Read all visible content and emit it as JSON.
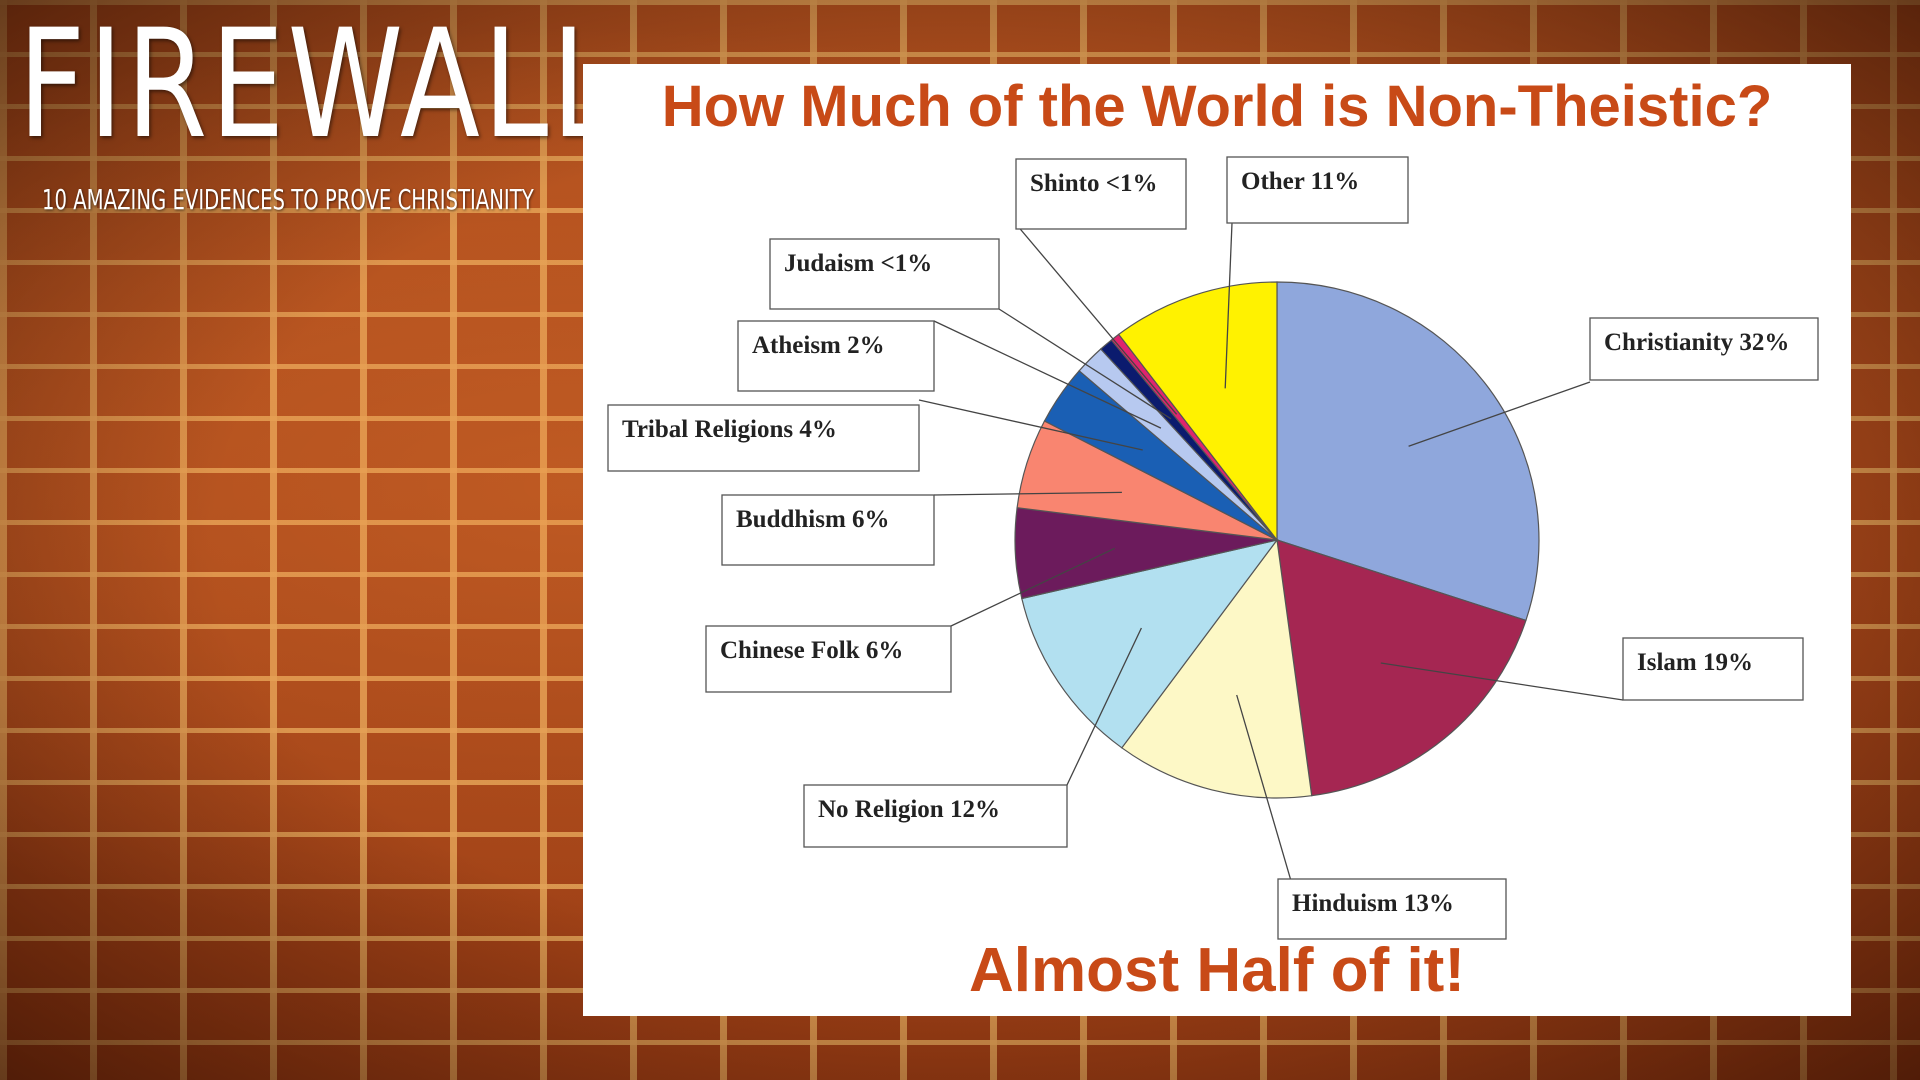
{
  "header": {
    "brand": "FIREWALL",
    "tagline": "10 AMAZING EVIDENCES TO PROVE CHRISTIANITY"
  },
  "chart_data": {
    "type": "pie",
    "title": "How Much of the World is Non-Theistic?",
    "footer": "Almost Half of it!",
    "slices": [
      {
        "label": "Christianity 32%",
        "name": "Christianity",
        "value": 32,
        "color": "#8fa7dc"
      },
      {
        "label": "Islam 19%",
        "name": "Islam",
        "value": 19,
        "color": "#a52652"
      },
      {
        "label": "Hinduism 13%",
        "name": "Hinduism",
        "value": 13,
        "color": "#fdf8c6"
      },
      {
        "label": "No Religion 12%",
        "name": "No Religion",
        "value": 12,
        "color": "#b2e0f0"
      },
      {
        "label": "Chinese Folk 6%",
        "name": "Chinese Folk",
        "value": 6,
        "color": "#6c1b5c"
      },
      {
        "label": "Buddhism 6%",
        "name": "Buddhism",
        "value": 6,
        "color": "#f98570"
      },
      {
        "label": "Tribal Religions 4%",
        "name": "Tribal Religions",
        "value": 4,
        "color": "#1a5fb4"
      },
      {
        "label": "Atheism 2%",
        "name": "Atheism",
        "value": 2,
        "color": "#b7c9f0"
      },
      {
        "label": "Judaism <1%",
        "name": "Judaism",
        "value": 0.9,
        "color": "#0b1b6e"
      },
      {
        "label": "Shinto <1%",
        "name": "Shinto",
        "value": 0.6,
        "color": "#e0246e"
      },
      {
        "label": "Other 11%",
        "name": "Other",
        "value": 11,
        "color": "#fff200"
      }
    ]
  }
}
